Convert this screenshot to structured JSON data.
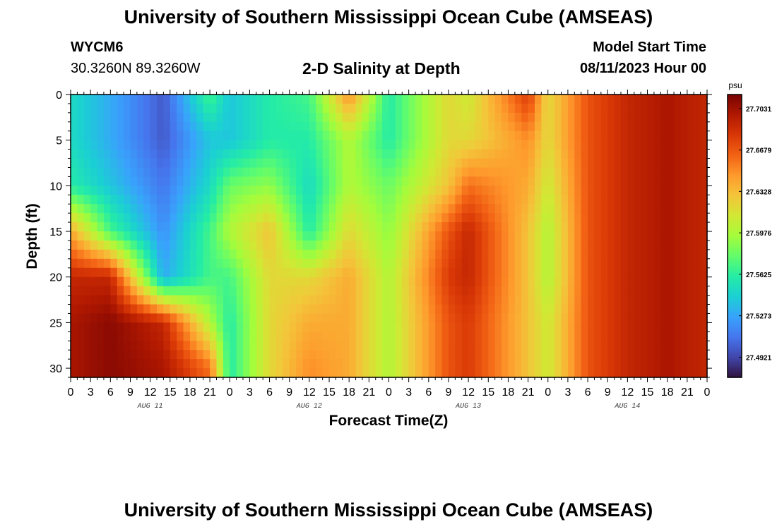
{
  "header": {
    "title": "University of Southern Mississippi Ocean Cube (AMSEAS)",
    "station": "WYCM6",
    "coordinates": "30.3260N  89.3260W",
    "subtitle": "2-D Salinity at Depth",
    "model_start_label": "Model Start Time",
    "model_start_value": "08/11/2023 Hour 00"
  },
  "footer": {
    "title_repeat": "University of Southern Mississippi Ocean Cube (AMSEAS)"
  },
  "chart_data": {
    "type": "heatmap",
    "title": "2-D Salinity at Depth",
    "xlabel": "Forecast Time(Z)",
    "ylabel": "Depth (ft)",
    "x_unit": "hours since 08/11/2023 00Z",
    "xlim": [
      0,
      96
    ],
    "ylim": [
      31,
      0
    ],
    "x_tick_labels": [
      "0",
      "3",
      "6",
      "9",
      "12",
      "15",
      "18",
      "21",
      "0",
      "3",
      "6",
      "9",
      "12",
      "15",
      "18",
      "21",
      "0",
      "3",
      "6",
      "9",
      "12",
      "15",
      "18",
      "21",
      "0",
      "3",
      "6",
      "9",
      "12",
      "15",
      "18",
      "21",
      "0"
    ],
    "x_tick_hours": [
      0,
      3,
      6,
      9,
      12,
      15,
      18,
      21,
      24,
      27,
      30,
      33,
      36,
      39,
      42,
      45,
      48,
      51,
      54,
      57,
      60,
      63,
      66,
      69,
      72,
      75,
      78,
      81,
      84,
      87,
      90,
      93,
      96
    ],
    "day_labels": [
      {
        "text": "AUG 11",
        "hour": 12
      },
      {
        "text": "AUG 12",
        "hour": 36
      },
      {
        "text": "AUG 13",
        "hour": 60
      },
      {
        "text": "AUG 14",
        "hour": 84
      }
    ],
    "y_ticks": [
      0,
      5,
      10,
      15,
      20,
      25,
      30
    ],
    "colorbar": {
      "unit": "psu",
      "min": 27.475,
      "max": 27.715,
      "tick_values": [
        27.4921,
        27.5273,
        27.5625,
        27.5976,
        27.6328,
        27.6679,
        27.7031
      ],
      "tick_labels": [
        "27.4921",
        "27.5273",
        "27.5625",
        "27.5976",
        "27.6328",
        "27.6679",
        "27.7031"
      ],
      "colormap": [
        "#30123b",
        "#4145ab",
        "#4675ed",
        "#39a2fc",
        "#1bcfd4",
        "#24eca6",
        "#61fc6c",
        "#a4fc3b",
        "#d1e834",
        "#f3c63a",
        "#fe9b2d",
        "#f36315",
        "#d93806",
        "#b11901",
        "#7a0403"
      ]
    },
    "salinity_field_description": "salinity (psu) vs forecast hour and depth",
    "profiles": [
      {
        "hour": 0,
        "values_by_depth_0_5_10_15_20_25_30": [
          27.55,
          27.55,
          27.56,
          27.64,
          27.69,
          27.7,
          27.7
        ]
      },
      {
        "hour": 6,
        "values_by_depth_0_5_10_15_20_25_30": [
          27.53,
          27.53,
          27.54,
          27.57,
          27.69,
          27.71,
          27.71
        ]
      },
      {
        "hour": 14,
        "values_by_depth_0_5_10_15_20_25_30": [
          27.5,
          27.5,
          27.51,
          27.52,
          27.53,
          27.69,
          27.7
        ]
      },
      {
        "hour": 21,
        "values_by_depth_0_5_10_15_20_25_30": [
          27.57,
          27.54,
          27.55,
          27.57,
          27.57,
          27.6,
          27.66
        ]
      },
      {
        "hour": 24,
        "values_by_depth_0_5_10_15_20_25_30": [
          27.54,
          27.54,
          27.58,
          27.6,
          27.57,
          27.56,
          27.56
        ]
      },
      {
        "hour": 30,
        "values_by_depth_0_5_10_15_20_25_30": [
          27.56,
          27.56,
          27.59,
          27.63,
          27.62,
          27.62,
          27.62
        ]
      },
      {
        "hour": 36,
        "values_by_depth_0_5_10_15_20_25_30": [
          27.57,
          27.56,
          27.55,
          27.56,
          27.62,
          27.64,
          27.65
        ]
      },
      {
        "hour": 42,
        "values_by_depth_0_5_10_15_20_25_30": [
          27.65,
          27.6,
          27.6,
          27.62,
          27.64,
          27.64,
          27.64
        ]
      },
      {
        "hour": 48,
        "values_by_depth_0_5_10_15_20_25_30": [
          27.56,
          27.56,
          27.58,
          27.59,
          27.6,
          27.6,
          27.6
        ]
      },
      {
        "hour": 57,
        "values_by_depth_0_5_10_15_20_25_30": [
          27.62,
          27.62,
          27.63,
          27.67,
          27.68,
          27.67,
          27.67
        ]
      },
      {
        "hour": 60,
        "values_by_depth_0_5_10_15_20_25_30": [
          27.61,
          27.62,
          27.66,
          27.69,
          27.69,
          27.68,
          27.68
        ]
      },
      {
        "hour": 69,
        "values_by_depth_0_5_10_15_20_25_30": [
          27.68,
          27.65,
          27.64,
          27.63,
          27.63,
          27.63,
          27.63
        ]
      },
      {
        "hour": 72,
        "values_by_depth_0_5_10_15_20_25_30": [
          27.62,
          27.62,
          27.61,
          27.6,
          27.6,
          27.61,
          27.61
        ]
      },
      {
        "hour": 78,
        "values_by_depth_0_5_10_15_20_25_30": [
          27.67,
          27.67,
          27.67,
          27.67,
          27.67,
          27.67,
          27.67
        ]
      },
      {
        "hour": 84,
        "values_by_depth_0_5_10_15_20_25_30": [
          27.69,
          27.69,
          27.69,
          27.69,
          27.69,
          27.69,
          27.69
        ]
      },
      {
        "hour": 90,
        "values_by_depth_0_5_10_15_20_25_30": [
          27.7,
          27.7,
          27.7,
          27.7,
          27.7,
          27.7,
          27.7
        ]
      },
      {
        "hour": 96,
        "values_by_depth_0_5_10_15_20_25_30": [
          27.69,
          27.69,
          27.69,
          27.69,
          27.69,
          27.69,
          27.69
        ]
      }
    ]
  }
}
